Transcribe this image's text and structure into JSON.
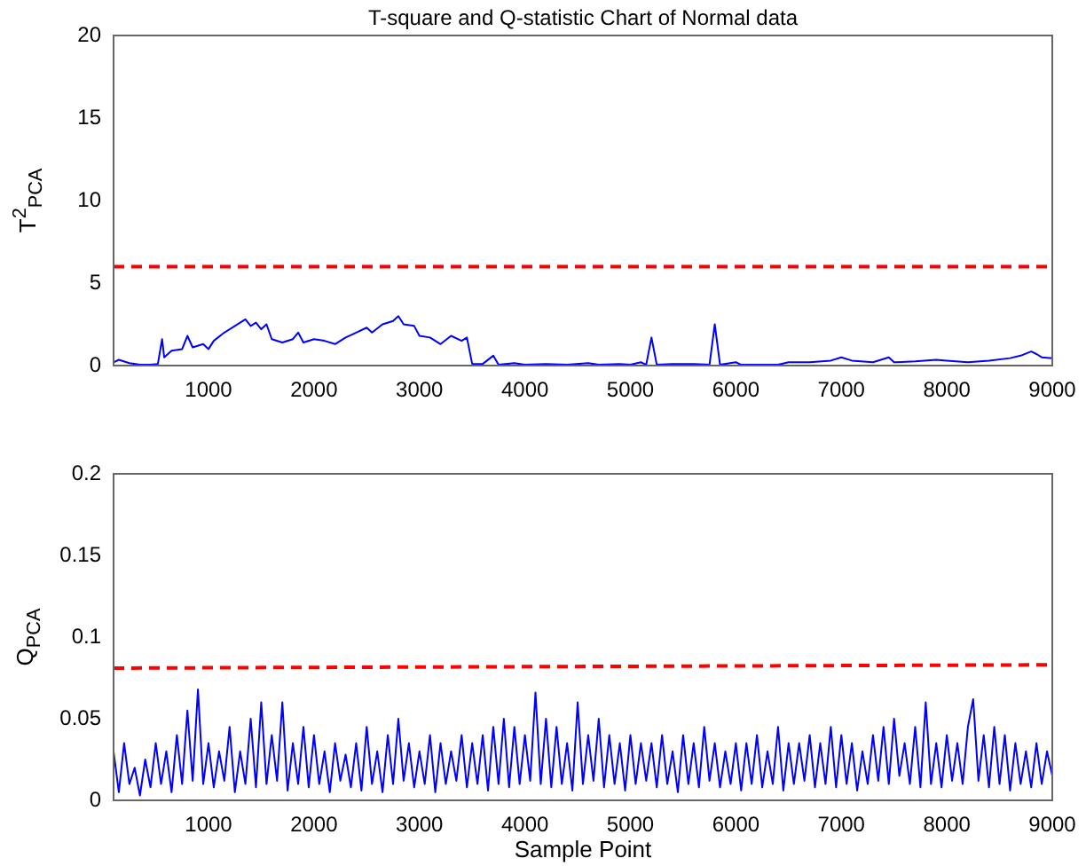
{
  "chart_data": [
    {
      "type": "line",
      "title": "T-square and Q-statistic Chart of Normal data",
      "ylabel": "T$^{2}$$_{PCA}$",
      "xlim": [
        100,
        9000
      ],
      "xticks": [
        1000,
        2000,
        3000,
        4000,
        5000,
        6000,
        7000,
        8000,
        9000
      ],
      "ylim": [
        0,
        20
      ],
      "yticks": [
        0,
        5,
        10,
        15,
        20
      ],
      "grid": false,
      "legend": false,
      "marker": "none",
      "ref_lines": [
        {
          "axis": "y",
          "value": 6,
          "color": "#ff0000",
          "line_style": "dashed"
        }
      ],
      "series": [
        {
          "color": "#0000ff",
          "x": [
            100,
            150,
            250,
            350,
            450,
            520,
            560,
            580,
            650,
            750,
            800,
            850,
            950,
            1000,
            1050,
            1150,
            1250,
            1350,
            1400,
            1450,
            1500,
            1550,
            1600,
            1700,
            1800,
            1850,
            1900,
            2000,
            2100,
            2200,
            2300,
            2400,
            2500,
            2550,
            2650,
            2750,
            2800,
            2850,
            2950,
            3000,
            3100,
            3200,
            3300,
            3400,
            3450,
            3500,
            3600,
            3700,
            3750,
            3900,
            4000,
            4200,
            4400,
            4600,
            4700,
            4900,
            5000,
            5100,
            5150,
            5200,
            5250,
            5400,
            5600,
            5750,
            5800,
            5850,
            6000,
            6050,
            6200,
            6400,
            6500,
            6700,
            6900,
            7000,
            7100,
            7300,
            7450,
            7500,
            7700,
            7900,
            8000,
            8200,
            8400,
            8600,
            8700,
            8800,
            8850,
            8900,
            9000
          ],
          "values": [
            0.2,
            0.35,
            0.15,
            0.05,
            0.05,
            0.1,
            1.6,
            0.5,
            0.9,
            1.0,
            1.8,
            1.1,
            1.3,
            1.0,
            1.5,
            2.0,
            2.4,
            2.8,
            2.4,
            2.6,
            2.2,
            2.5,
            1.6,
            1.4,
            1.6,
            2.0,
            1.4,
            1.6,
            1.5,
            1.3,
            1.7,
            2.0,
            2.3,
            2.0,
            2.5,
            2.7,
            3.0,
            2.5,
            2.4,
            1.8,
            1.7,
            1.3,
            1.8,
            1.5,
            1.7,
            0.1,
            0.1,
            0.6,
            0.05,
            0.15,
            0.05,
            0.1,
            0.05,
            0.15,
            0.05,
            0.1,
            0.05,
            0.2,
            0.05,
            1.7,
            0.05,
            0.1,
            0.1,
            0.05,
            2.5,
            0.05,
            0.2,
            0.05,
            0.05,
            0.05,
            0.2,
            0.2,
            0.3,
            0.5,
            0.3,
            0.2,
            0.5,
            0.2,
            0.25,
            0.35,
            0.3,
            0.2,
            0.3,
            0.45,
            0.6,
            0.85,
            0.7,
            0.5,
            0.45
          ]
        }
      ]
    },
    {
      "type": "line",
      "ylabel": "Q$_{PCA}$",
      "xlabel": "Sample Point",
      "xlim": [
        100,
        9000
      ],
      "xticks": [
        1000,
        2000,
        3000,
        4000,
        5000,
        6000,
        7000,
        8000,
        9000
      ],
      "ylim": [
        0,
        0.2
      ],
      "yticks": [
        0,
        0.05,
        0.1,
        0.15,
        0.2
      ],
      "grid": false,
      "legend": false,
      "marker": "none",
      "series": [
        {
          "color": "#0000ff",
          "x": [
            100,
            150,
            200,
            250,
            300,
            350,
            400,
            450,
            500,
            550,
            600,
            650,
            700,
            750,
            800,
            850,
            900,
            950,
            1000,
            1050,
            1100,
            1150,
            1200,
            1250,
            1300,
            1350,
            1400,
            1450,
            1500,
            1550,
            1600,
            1650,
            1700,
            1750,
            1800,
            1850,
            1900,
            1950,
            2000,
            2050,
            2100,
            2150,
            2200,
            2250,
            2300,
            2350,
            2400,
            2450,
            2500,
            2550,
            2600,
            2650,
            2700,
            2750,
            2800,
            2850,
            2900,
            2950,
            3000,
            3050,
            3100,
            3150,
            3200,
            3250,
            3300,
            3350,
            3400,
            3450,
            3500,
            3550,
            3600,
            3650,
            3700,
            3750,
            3800,
            3850,
            3900,
            3950,
            4000,
            4050,
            4100,
            4150,
            4200,
            4250,
            4300,
            4350,
            4400,
            4450,
            4500,
            4550,
            4600,
            4650,
            4700,
            4750,
            4800,
            4850,
            4900,
            4950,
            5000,
            5050,
            5100,
            5150,
            5200,
            5250,
            5300,
            5350,
            5400,
            5450,
            5500,
            5550,
            5600,
            5650,
            5700,
            5750,
            5800,
            5850,
            5900,
            5950,
            6000,
            6050,
            6100,
            6150,
            6200,
            6250,
            6300,
            6350,
            6400,
            6450,
            6500,
            6550,
            6600,
            6650,
            6700,
            6750,
            6800,
            6850,
            6900,
            6950,
            7000,
            7050,
            7100,
            7150,
            7200,
            7250,
            7300,
            7350,
            7400,
            7450,
            7500,
            7550,
            7600,
            7650,
            7700,
            7750,
            7800,
            7850,
            7900,
            7950,
            8000,
            8050,
            8100,
            8150,
            8200,
            8250,
            8300,
            8350,
            8400,
            8450,
            8500,
            8550,
            8600,
            8650,
            8700,
            8750,
            8800,
            8850,
            8900,
            8950,
            9000
          ],
          "values": [
            0.03,
            0.005,
            0.035,
            0.01,
            0.02,
            0.003,
            0.025,
            0.008,
            0.035,
            0.01,
            0.03,
            0.005,
            0.04,
            0.01,
            0.055,
            0.012,
            0.068,
            0.01,
            0.035,
            0.008,
            0.03,
            0.012,
            0.045,
            0.005,
            0.03,
            0.01,
            0.05,
            0.008,
            0.06,
            0.01,
            0.04,
            0.012,
            0.06,
            0.006,
            0.035,
            0.01,
            0.045,
            0.008,
            0.04,
            0.01,
            0.03,
            0.005,
            0.035,
            0.012,
            0.028,
            0.008,
            0.035,
            0.006,
            0.045,
            0.01,
            0.03,
            0.005,
            0.04,
            0.01,
            0.05,
            0.012,
            0.035,
            0.008,
            0.03,
            0.01,
            0.04,
            0.005,
            0.035,
            0.01,
            0.03,
            0.012,
            0.04,
            0.008,
            0.035,
            0.01,
            0.04,
            0.006,
            0.045,
            0.01,
            0.05,
            0.008,
            0.045,
            0.01,
            0.04,
            0.012,
            0.066,
            0.01,
            0.05,
            0.008,
            0.045,
            0.01,
            0.035,
            0.006,
            0.06,
            0.01,
            0.04,
            0.012,
            0.05,
            0.008,
            0.04,
            0.01,
            0.035,
            0.006,
            0.04,
            0.01,
            0.035,
            0.012,
            0.035,
            0.008,
            0.04,
            0.01,
            0.03,
            0.005,
            0.04,
            0.01,
            0.035,
            0.008,
            0.045,
            0.012,
            0.035,
            0.008,
            0.03,
            0.01,
            0.035,
            0.006,
            0.035,
            0.01,
            0.04,
            0.008,
            0.03,
            0.01,
            0.045,
            0.006,
            0.035,
            0.01,
            0.035,
            0.012,
            0.04,
            0.008,
            0.035,
            0.01,
            0.045,
            0.008,
            0.04,
            0.01,
            0.035,
            0.006,
            0.03,
            0.01,
            0.04,
            0.012,
            0.045,
            0.01,
            0.05,
            0.015,
            0.035,
            0.01,
            0.045,
            0.008,
            0.06,
            0.01,
            0.035,
            0.008,
            0.04,
            0.012,
            0.035,
            0.01,
            0.045,
            0.062,
            0.012,
            0.04,
            0.008,
            0.045,
            0.01,
            0.04,
            0.006,
            0.035,
            0.01,
            0.03,
            0.008,
            0.035,
            0.01,
            0.03,
            0.015
          ]
        },
        {
          "type": "line",
          "color": "#ff0000",
          "line_style": "dashed",
          "x": [
            100,
            9000
          ],
          "values": [
            0.081,
            0.083
          ]
        }
      ]
    }
  ]
}
